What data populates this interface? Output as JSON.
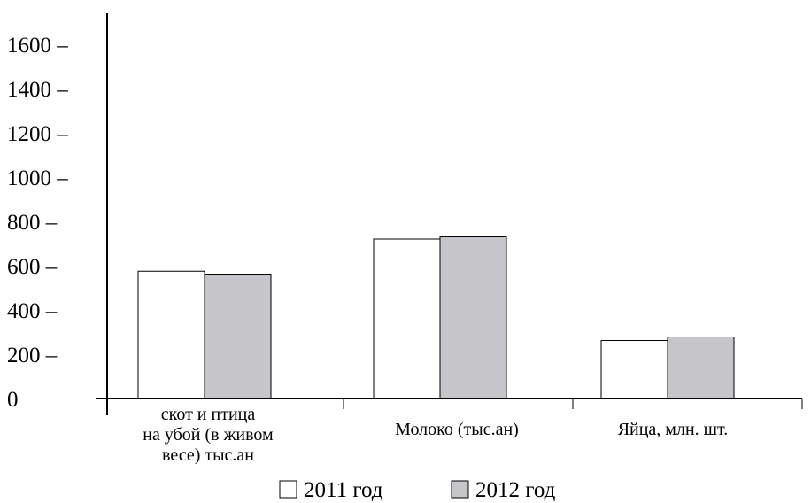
{
  "chart_data": {
    "type": "bar",
    "ylim": [
      0,
      1600
    ],
    "yticks": [
      0,
      200,
      400,
      600,
      800,
      1000,
      1200,
      1400,
      1600
    ],
    "ytick_labels": [
      "0",
      "200 –",
      "400 –",
      "600 –",
      "800 –",
      "1000 –",
      "1200 –",
      "1400 –",
      "1600 –"
    ],
    "categories": [
      [
        "скот и птица",
        "на убой (в живом",
        "весе) тыс.ан"
      ],
      [
        "Молоко (тыс.ан)"
      ],
      [
        "Яйца, млн. шт."
      ]
    ],
    "series": [
      {
        "name": "2011 год",
        "values": [
          575,
          720,
          262
        ],
        "color": "#ffffff"
      },
      {
        "name": "2012 год",
        "values": [
          562,
          730,
          278
        ],
        "color": "#c6c5ca"
      }
    ],
    "legend": "bottom",
    "grid": false
  }
}
